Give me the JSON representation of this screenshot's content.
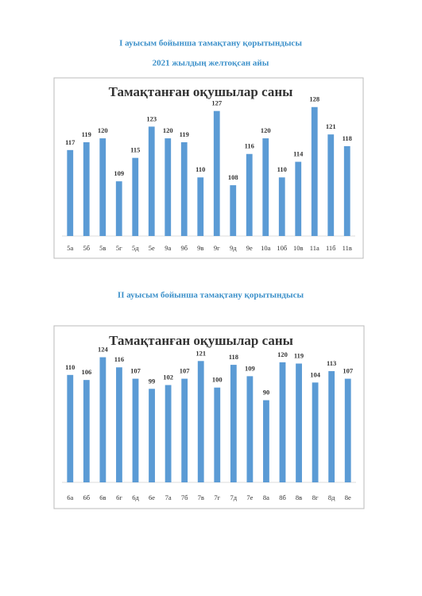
{
  "headings": {
    "first": "I ауысым бойынша тамақтану қорытындысы",
    "date": "2021 жылдың желтоқсан айы",
    "second": "II ауысым бойынша тамақтану қорытындысы"
  },
  "chart_data": [
    {
      "type": "bar",
      "title": "Тамақтанған оқушылар саны",
      "categories": [
        "5а",
        "5б",
        "5в",
        "5г",
        "5д",
        "5е",
        "9а",
        "9б",
        "9в",
        "9г",
        "9д",
        "9е",
        "10а",
        "10б",
        "10в",
        "11а",
        "11б",
        "11в"
      ],
      "values": [
        117,
        119,
        120,
        109,
        115,
        123,
        120,
        119,
        110,
        127,
        108,
        116,
        120,
        110,
        114,
        128,
        121,
        118
      ],
      "color": "#5b9bd5",
      "ylim": [
        95,
        131
      ]
    },
    {
      "type": "bar",
      "title": "Тамақтанған оқушылар саны",
      "categories": [
        "6а",
        "6б",
        "6в",
        "6г",
        "6д",
        "6е",
        "7а",
        "7б",
        "7в",
        "7г",
        "7д",
        "7е",
        "8а",
        "8б",
        "8в",
        "8г",
        "8д",
        "8е"
      ],
      "values": [
        110,
        106,
        124,
        116,
        107,
        99,
        102,
        107,
        121,
        100,
        118,
        109,
        90,
        120,
        119,
        104,
        113,
        107
      ],
      "color": "#5b9bd5",
      "ylim": [
        25,
        130
      ]
    }
  ]
}
